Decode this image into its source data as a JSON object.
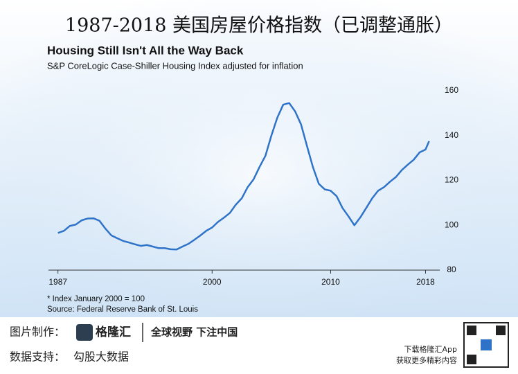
{
  "header": {
    "title": "1987-2018 美国房屋价格指数（已调整通胀）"
  },
  "chart_data": {
    "type": "line",
    "title": "Housing Still Isn't All the Way Back",
    "subtitle": "S&P CoreLogic Case-Shiller Housing Index adjusted for inflation",
    "notes": [
      "* Index January 2000 = 100",
      "Source: Federal Reserve Bank of St. Louis"
    ],
    "x": [
      1987,
      1987.5,
      1988,
      1988.5,
      1989,
      1989.5,
      1990,
      1990.5,
      1991,
      1991.5,
      1992,
      1992.5,
      1993,
      1993.5,
      1994,
      1994.5,
      1995,
      1995.5,
      1996,
      1996.5,
      1997,
      1997.5,
      1998,
      1998.5,
      1999,
      1999.5,
      2000,
      2000.5,
      2001,
      2001.5,
      2002,
      2002.5,
      2003,
      2003.5,
      2004,
      2004.5,
      2005,
      2005.5,
      2006,
      2006.5,
      2007,
      2007.5,
      2008,
      2008.5,
      2009,
      2009.5,
      2010,
      2010.5,
      2011,
      2011.5,
      2012,
      2012.5,
      2013,
      2013.5,
      2014,
      2014.5,
      2015,
      2015.5,
      2016,
      2016.5,
      2017,
      2017.5,
      2018,
      2018.3
    ],
    "series": [
      {
        "name": "Housing index",
        "color": "#2f73c9",
        "values": [
          96.6,
          97.5,
          99.7,
          100.3,
          102.2,
          103,
          103.1,
          102,
          98.5,
          95.5,
          94.2,
          93,
          92.3,
          91.5,
          90.8,
          91.2,
          90.5,
          89.8,
          89.8,
          89.3,
          89.2,
          90.5,
          91.7,
          93.5,
          95.4,
          97.5,
          99,
          101.5,
          103.4,
          105.5,
          109.2,
          112,
          117,
          120.5,
          126,
          131,
          140,
          148,
          153.8,
          154.5,
          150.8,
          145,
          135.4,
          126,
          118.5,
          116,
          115.4,
          113,
          107.7,
          104,
          100,
          103.5,
          107.7,
          112,
          115.4,
          117,
          119.4,
          121.5,
          124.6,
          127,
          129.2,
          132.5,
          133.8,
          137.5
        ]
      }
    ],
    "xlim": [
      1986.2,
      2019.2
    ],
    "xticks": [
      1987,
      2000,
      2010,
      2018
    ],
    "ylim": [
      80,
      160
    ],
    "yticks": [
      80,
      100,
      120,
      140,
      160
    ]
  },
  "footer": {
    "made_by_label": "图片制作：",
    "logo": "格隆汇",
    "slogan": "全球视野 下注中国",
    "data_label": "数据支持：",
    "data_source": "勾股大数据",
    "app_line1": "下载格隆汇App",
    "app_line2": "获取更多精彩内容"
  }
}
